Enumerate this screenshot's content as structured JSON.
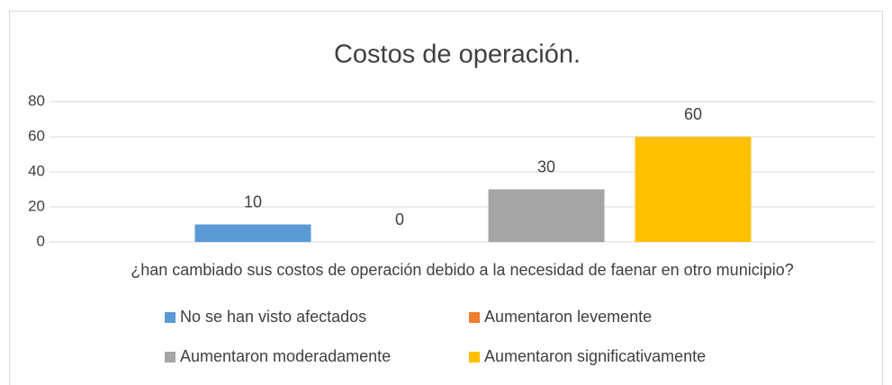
{
  "chart_data": {
    "type": "bar",
    "title": "Costos de operación.",
    "categories": [
      "¿han cambiado sus costos de operación debido a la necesidad de faenar en otro municipio?"
    ],
    "series": [
      {
        "name": "No se han visto afectados",
        "color": "#5b9bd5",
        "values": [
          10
        ]
      },
      {
        "name": "Aumentaron levemente",
        "color": "#ed7d31",
        "values": [
          0
        ]
      },
      {
        "name": "Aumentaron moderadamente",
        "color": "#a5a5a5",
        "values": [
          30
        ]
      },
      {
        "name": "Aumentaron significativamente",
        "color": "#ffc000",
        "values": [
          60
        ]
      }
    ],
    "ylim": [
      0,
      80
    ],
    "yticks": [
      0,
      20,
      40,
      60,
      80
    ],
    "grid": true,
    "legend": "bottom"
  }
}
